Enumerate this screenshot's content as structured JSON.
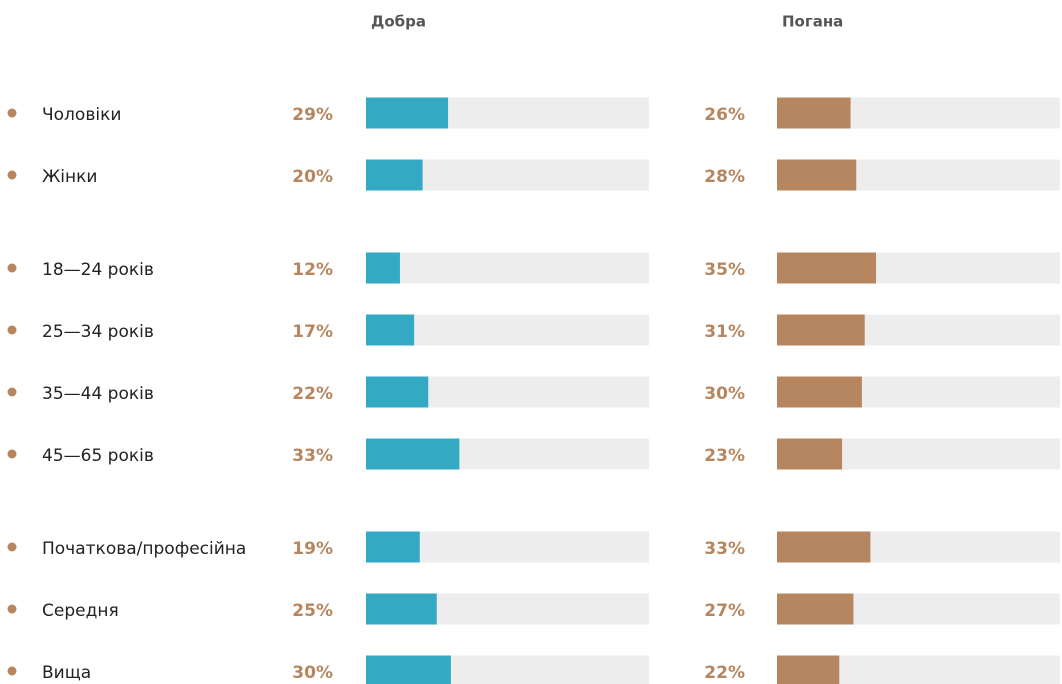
{
  "chart_data": {
    "type": "bar",
    "categories": [
      "Чоловіки",
      "Жінки",
      "18—24 років",
      "25—34 років",
      "35—44 років",
      "45—65 років",
      "Початкова/професійна",
      "Середня",
      "Вища"
    ],
    "series": [
      {
        "name": "Добра",
        "color": "#33a9c4",
        "values": [
          29,
          20,
          12,
          17,
          22,
          33,
          19,
          25,
          30
        ],
        "value_labels": [
          "29%",
          "20%",
          "12%",
          "17%",
          "22%",
          "33%",
          "19%",
          "25%",
          "30%"
        ]
      },
      {
        "name": "Погана",
        "color": "#b5865f",
        "values": [
          26,
          28,
          35,
          31,
          30,
          23,
          33,
          27,
          22
        ],
        "value_labels": [
          "26%",
          "28%",
          "35%",
          "31%",
          "30%",
          "23%",
          "33%",
          "27%",
          "22%"
        ]
      }
    ],
    "xlim": [
      0,
      100
    ]
  }
}
